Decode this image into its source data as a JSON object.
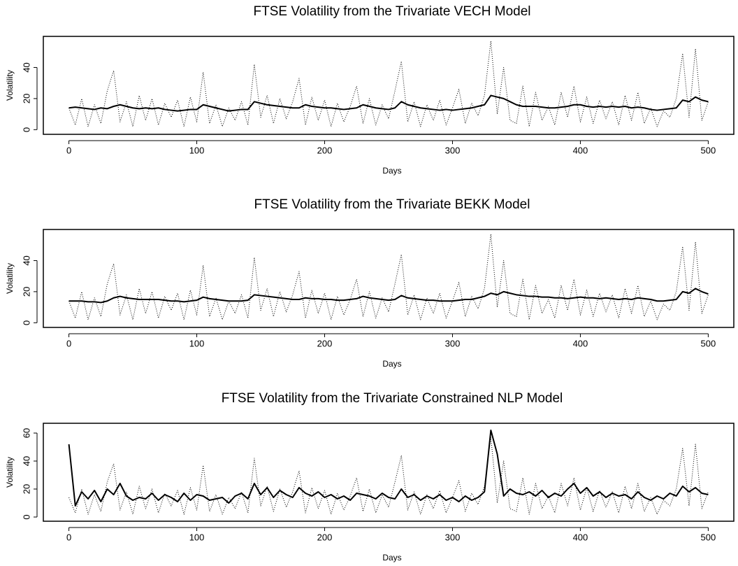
{
  "chart_data": [
    {
      "type": "line",
      "title": "FTSE Volatility from the Trivariate VECH Model",
      "x_label": "Days",
      "y_label": "Volatility",
      "xlim": [
        -20,
        520
      ],
      "ylim": [
        -3,
        60
      ],
      "xticks": [
        0,
        100,
        200,
        300,
        400,
        500
      ],
      "yticks": [
        0,
        20,
        40
      ],
      "x": [
        0,
        5,
        10,
        15,
        20,
        25,
        30,
        35,
        40,
        45,
        50,
        55,
        60,
        65,
        70,
        75,
        80,
        85,
        90,
        95,
        100,
        105,
        110,
        115,
        120,
        125,
        130,
        135,
        140,
        145,
        150,
        155,
        160,
        165,
        170,
        175,
        180,
        185,
        190,
        195,
        200,
        205,
        210,
        215,
        220,
        225,
        230,
        235,
        240,
        245,
        250,
        255,
        260,
        265,
        270,
        275,
        280,
        285,
        290,
        295,
        300,
        305,
        310,
        315,
        320,
        325,
        330,
        335,
        340,
        345,
        350,
        355,
        360,
        365,
        370,
        375,
        380,
        385,
        390,
        395,
        400,
        405,
        410,
        415,
        420,
        425,
        430,
        435,
        440,
        445,
        450,
        455,
        460,
        465,
        470,
        475,
        480,
        485,
        490,
        495,
        500
      ],
      "series": [
        {
          "color": "#000000",
          "line_style": "dotted",
          "values": [
            14,
            3,
            20,
            2,
            16,
            4,
            25,
            38,
            5,
            18,
            2,
            22,
            6,
            20,
            3,
            17,
            8,
            19,
            2,
            21,
            5,
            37,
            4,
            16,
            2,
            14,
            6,
            18,
            3,
            42,
            8,
            22,
            4,
            20,
            7,
            18,
            33,
            3,
            21,
            6,
            19,
            2,
            17,
            5,
            15,
            28,
            4,
            20,
            3,
            16,
            7,
            25,
            44,
            5,
            18,
            2,
            16,
            6,
            19,
            3,
            14,
            26,
            4,
            17,
            9,
            22,
            57,
            10,
            40,
            6,
            4,
            28,
            2,
            24,
            6,
            15,
            3,
            24,
            8,
            28,
            5,
            21,
            4,
            19,
            7,
            18,
            3,
            22,
            6,
            24,
            4,
            14,
            2,
            12,
            8,
            20,
            49,
            8,
            52,
            6,
            18
          ]
        },
        {
          "color": "#000000",
          "line_style": "solid",
          "values": [
            14,
            14.5,
            14,
            13.5,
            13,
            14,
            13.5,
            15,
            16,
            15,
            14,
            13.5,
            14,
            13.5,
            14,
            13,
            12.5,
            12,
            12.5,
            13,
            13,
            16,
            15,
            14,
            13,
            12,
            12.5,
            13,
            13,
            18,
            17,
            16,
            15.5,
            15,
            14.5,
            14,
            14,
            16,
            15,
            14.5,
            14,
            14,
            13.5,
            13,
            13.5,
            14,
            16,
            15,
            14,
            13.5,
            13,
            14,
            18,
            16,
            15,
            14,
            13.5,
            13,
            12.5,
            13,
            12.5,
            13,
            13.5,
            14,
            15,
            16,
            22,
            21,
            20,
            18,
            16,
            15,
            15,
            15,
            14.5,
            14,
            14,
            14.5,
            15,
            16,
            16,
            15,
            14.5,
            15,
            14.5,
            15,
            14.5,
            15,
            14,
            14.5,
            14,
            13,
            12.5,
            13,
            13.5,
            14,
            19,
            18,
            21,
            19,
            18
          ]
        }
      ]
    },
    {
      "type": "line",
      "title": "FTSE Volatility from the Trivariate BEKK Model",
      "x_label": "Days",
      "y_label": "Volatility",
      "xlim": [
        -20,
        520
      ],
      "ylim": [
        -3,
        60
      ],
      "xticks": [
        0,
        100,
        200,
        300,
        400,
        500
      ],
      "yticks": [
        0,
        20,
        40
      ],
      "x": [
        0,
        5,
        10,
        15,
        20,
        25,
        30,
        35,
        40,
        45,
        50,
        55,
        60,
        65,
        70,
        75,
        80,
        85,
        90,
        95,
        100,
        105,
        110,
        115,
        120,
        125,
        130,
        135,
        140,
        145,
        150,
        155,
        160,
        165,
        170,
        175,
        180,
        185,
        190,
        195,
        200,
        205,
        210,
        215,
        220,
        225,
        230,
        235,
        240,
        245,
        250,
        255,
        260,
        265,
        270,
        275,
        280,
        285,
        290,
        295,
        300,
        305,
        310,
        315,
        320,
        325,
        330,
        335,
        340,
        345,
        350,
        355,
        360,
        365,
        370,
        375,
        380,
        385,
        390,
        395,
        400,
        405,
        410,
        415,
        420,
        425,
        430,
        435,
        440,
        445,
        450,
        455,
        460,
        465,
        470,
        475,
        480,
        485,
        490,
        495,
        500
      ],
      "series": [
        {
          "color": "#000000",
          "line_style": "dotted",
          "values": [
            14,
            3,
            20,
            2,
            16,
            4,
            25,
            38,
            5,
            18,
            2,
            22,
            6,
            20,
            3,
            17,
            8,
            19,
            2,
            21,
            5,
            37,
            4,
            16,
            2,
            14,
            6,
            18,
            3,
            42,
            8,
            22,
            4,
            20,
            7,
            18,
            33,
            3,
            21,
            6,
            19,
            2,
            17,
            5,
            15,
            28,
            4,
            20,
            3,
            16,
            7,
            25,
            44,
            5,
            18,
            2,
            16,
            6,
            19,
            3,
            14,
            26,
            4,
            17,
            9,
            22,
            57,
            10,
            40,
            6,
            4,
            28,
            2,
            24,
            6,
            15,
            3,
            24,
            8,
            28,
            5,
            21,
            4,
            19,
            7,
            18,
            3,
            22,
            6,
            24,
            4,
            14,
            2,
            12,
            8,
            20,
            49,
            8,
            52,
            6,
            18
          ]
        },
        {
          "color": "#000000",
          "line_style": "solid",
          "values": [
            14,
            14,
            14,
            13.5,
            13.5,
            13,
            14,
            16,
            17,
            16,
            15.5,
            15,
            15,
            15,
            15,
            14.5,
            14,
            14,
            13.5,
            14,
            14.5,
            16.5,
            15.5,
            15,
            14.5,
            14,
            14,
            14,
            14.5,
            18,
            17.5,
            17,
            16.5,
            16,
            15.5,
            15,
            15,
            16,
            15.5,
            15.5,
            15,
            15,
            14.5,
            14.5,
            15,
            15.5,
            17,
            16,
            15.5,
            15,
            14.5,
            15,
            17.5,
            16,
            15.5,
            15,
            14.5,
            14.5,
            14,
            14,
            14,
            14.5,
            15,
            15,
            16,
            17,
            19,
            18,
            20,
            19,
            18,
            17.5,
            17,
            17,
            16.5,
            16.5,
            16,
            16,
            15.5,
            16,
            16.5,
            16,
            16,
            15.5,
            16,
            15.5,
            15,
            15.5,
            15,
            16,
            15.5,
            15,
            14,
            14,
            14.5,
            15,
            20,
            19,
            22,
            20,
            18.5
          ]
        }
      ]
    },
    {
      "type": "line",
      "title": "FTSE Volatility from the Trivariate Constrained NLP Model",
      "x_label": "Days",
      "y_label": "Volatility",
      "xlim": [
        -20,
        520
      ],
      "ylim": [
        -3,
        67
      ],
      "xticks": [
        0,
        100,
        200,
        300,
        400,
        500
      ],
      "yticks": [
        0,
        20,
        40,
        60
      ],
      "x": [
        0,
        5,
        10,
        15,
        20,
        25,
        30,
        35,
        40,
        45,
        50,
        55,
        60,
        65,
        70,
        75,
        80,
        85,
        90,
        95,
        100,
        105,
        110,
        115,
        120,
        125,
        130,
        135,
        140,
        145,
        150,
        155,
        160,
        165,
        170,
        175,
        180,
        185,
        190,
        195,
        200,
        205,
        210,
        215,
        220,
        225,
        230,
        235,
        240,
        245,
        250,
        255,
        260,
        265,
        270,
        275,
        280,
        285,
        290,
        295,
        300,
        305,
        310,
        315,
        320,
        325,
        330,
        335,
        340,
        345,
        350,
        355,
        360,
        365,
        370,
        375,
        380,
        385,
        390,
        395,
        400,
        405,
        410,
        415,
        420,
        425,
        430,
        435,
        440,
        445,
        450,
        455,
        460,
        465,
        470,
        475,
        480,
        485,
        490,
        495,
        500
      ],
      "series": [
        {
          "color": "#000000",
          "line_style": "dotted",
          "values": [
            14,
            3,
            20,
            2,
            16,
            4,
            25,
            38,
            5,
            18,
            2,
            22,
            6,
            20,
            3,
            17,
            8,
            19,
            2,
            21,
            5,
            37,
            4,
            16,
            2,
            14,
            6,
            18,
            3,
            42,
            8,
            22,
            4,
            20,
            7,
            18,
            33,
            3,
            21,
            6,
            19,
            2,
            17,
            5,
            15,
            28,
            4,
            20,
            3,
            16,
            7,
            25,
            44,
            5,
            18,
            2,
            16,
            6,
            19,
            3,
            14,
            26,
            4,
            17,
            9,
            22,
            57,
            10,
            40,
            6,
            4,
            28,
            2,
            24,
            6,
            15,
            3,
            24,
            8,
            28,
            5,
            21,
            4,
            19,
            7,
            18,
            3,
            22,
            6,
            24,
            4,
            14,
            2,
            12,
            8,
            20,
            49,
            8,
            52,
            6,
            18
          ]
        },
        {
          "color": "#000000",
          "line_style": "solid",
          "values": [
            52,
            8,
            18,
            13,
            19,
            11,
            20,
            16,
            24,
            15,
            12,
            14,
            13,
            17,
            12,
            16,
            14,
            11,
            17,
            12,
            16,
            15,
            12,
            13,
            14,
            10,
            15,
            17,
            13,
            24,
            16,
            21,
            14,
            19,
            16,
            14,
            21,
            17,
            15,
            18,
            14,
            16,
            13,
            15,
            12,
            17,
            16,
            15,
            13,
            17,
            14,
            13,
            20,
            14,
            16,
            12,
            15,
            13,
            16,
            12,
            14,
            11,
            15,
            12,
            14,
            18,
            62,
            45,
            15,
            20,
            17,
            16,
            18,
            15,
            19,
            14,
            17,
            15,
            20,
            24,
            17,
            21,
            15,
            18,
            14,
            17,
            15,
            16,
            13,
            18,
            14,
            12,
            15,
            13,
            17,
            15,
            22,
            18,
            21,
            17,
            16
          ]
        }
      ]
    }
  ]
}
